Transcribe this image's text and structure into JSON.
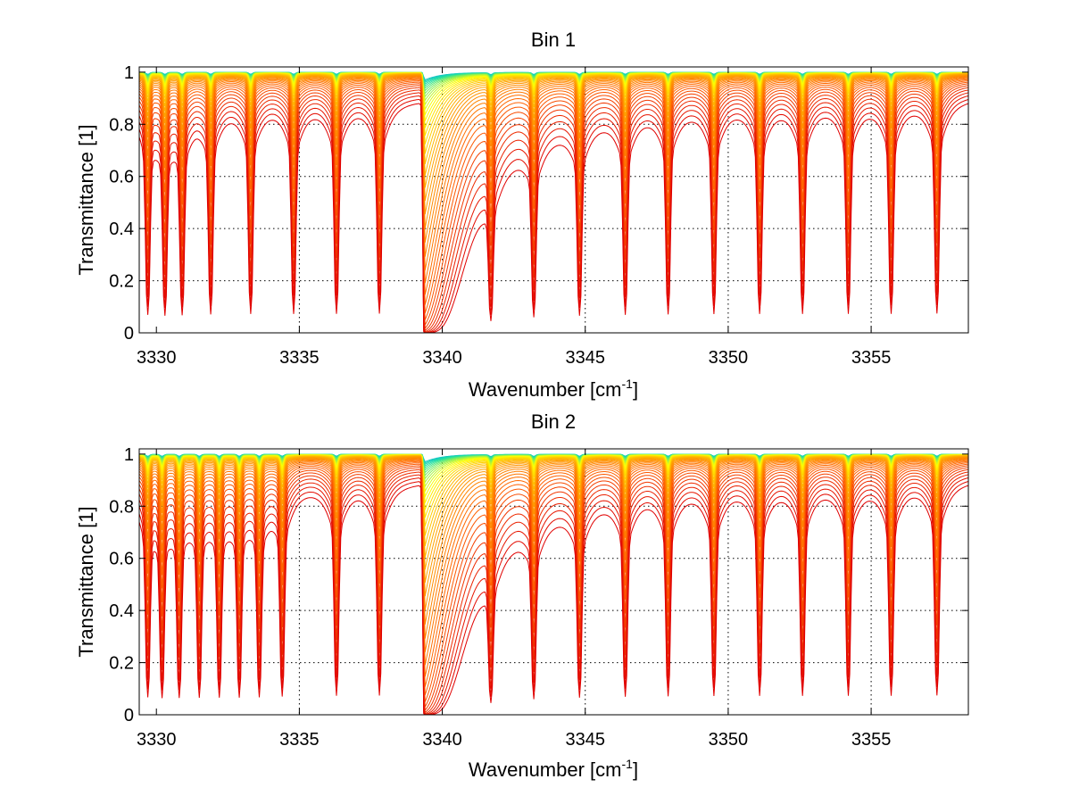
{
  "chart_data": [
    {
      "type": "line",
      "title": "Bin 1",
      "xlabel": "Wavenumber [cm",
      "xlabel_sup": "-1",
      "xlabel_close": "]",
      "ylabel": "Transmittance [1]",
      "xlim": [
        3329.4,
        3358.4
      ],
      "ylim": [
        0,
        1.02
      ],
      "xticks": [
        3330,
        3335,
        3340,
        3345,
        3350,
        3355
      ],
      "xtick_labels": [
        "3330",
        "3335",
        "3340",
        "3345",
        "3350",
        "3355"
      ],
      "yticks": [
        0,
        0.2,
        0.4,
        0.6,
        0.8,
        1
      ],
      "ytick_labels": [
        "0",
        "0.2",
        "0.4",
        "0.6",
        "0.8",
        "1"
      ],
      "grid": true,
      "series_count": 40,
      "line_positions": [
        3329.7,
        3330.3,
        3330.9,
        3331.9,
        3333.3,
        3334.8,
        3336.3,
        3337.8,
        3341.7,
        3343.2,
        3344.8,
        3346.4,
        3347.9,
        3349.5,
        3351.1,
        3352.6,
        3354.2,
        3355.7,
        3357.3
      ],
      "band_head": 3339.4,
      "colormap": [
        "#00a0ff",
        "#20e0a0",
        "#ffff00",
        "#ffa000",
        "#ff6000",
        "#e00000"
      ]
    },
    {
      "type": "line",
      "title": "Bin 2",
      "xlabel": "Wavenumber [cm",
      "xlabel_sup": "-1",
      "xlabel_close": "]",
      "ylabel": "Transmittance [1]",
      "xlim": [
        3329.4,
        3358.4
      ],
      "ylim": [
        0,
        1.02
      ],
      "xticks": [
        3330,
        3335,
        3340,
        3345,
        3350,
        3355
      ],
      "xtick_labels": [
        "3330",
        "3335",
        "3340",
        "3345",
        "3350",
        "3355"
      ],
      "yticks": [
        0,
        0.2,
        0.4,
        0.6,
        0.8,
        1
      ],
      "ytick_labels": [
        "0",
        "0.2",
        "0.4",
        "0.6",
        "0.8",
        "1"
      ],
      "grid": true,
      "series_count": 40,
      "line_positions": [
        3329.7,
        3330.2,
        3330.8,
        3331.5,
        3332.2,
        3332.9,
        3333.6,
        3334.4,
        3336.3,
        3337.8,
        3341.7,
        3343.2,
        3344.8,
        3346.4,
        3347.9,
        3349.5,
        3351.1,
        3352.6,
        3354.2,
        3355.7,
        3357.3
      ],
      "band_head": 3339.4,
      "colormap": [
        "#00a0ff",
        "#20e0a0",
        "#ffff00",
        "#ffa000",
        "#ff6000",
        "#e00000"
      ]
    }
  ]
}
